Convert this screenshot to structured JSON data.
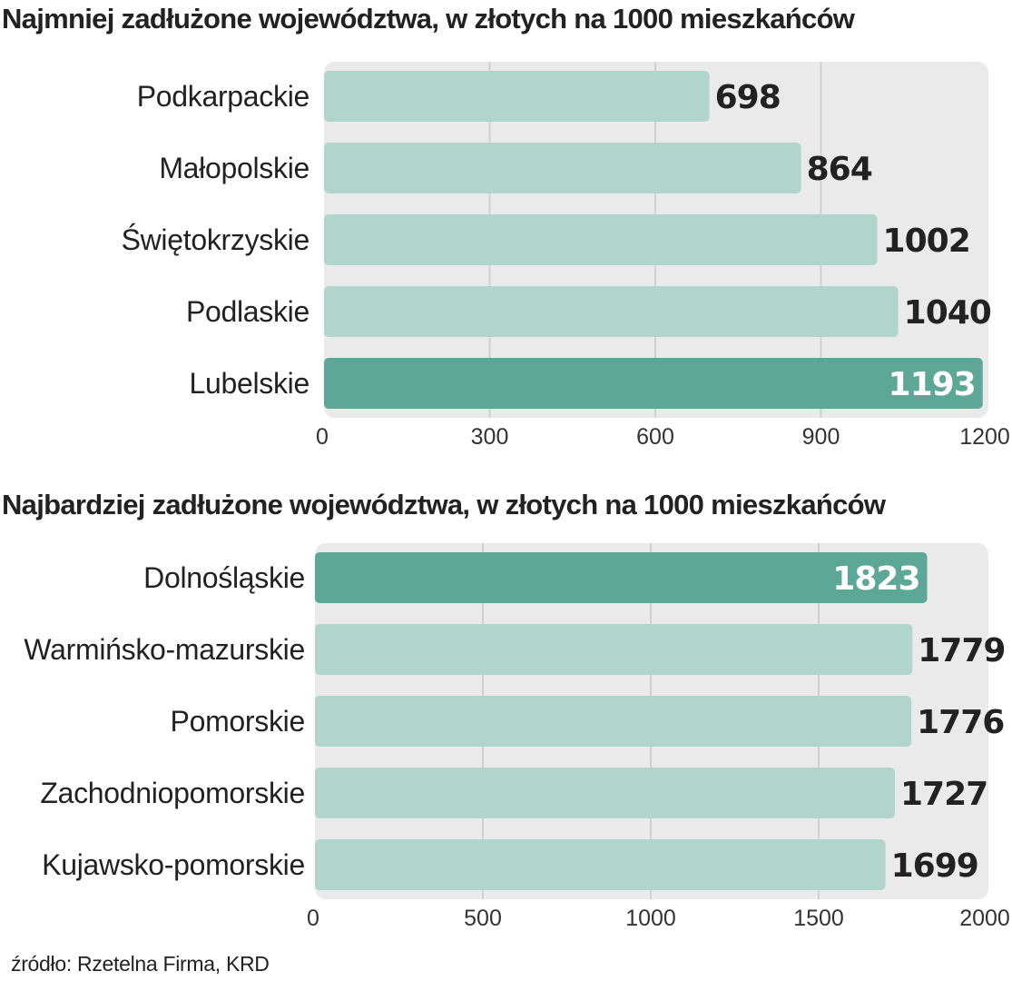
{
  "colors": {
    "bar": "#b2d5cb",
    "highlight": "#5da797",
    "panel": "#eaeaea",
    "grid": "#d0d0d0",
    "text": "#222222",
    "highlight_label": "#ffffff"
  },
  "chart_data": [
    {
      "type": "bar",
      "orientation": "horizontal",
      "title": "Najmniej zadłużone województwa, w złotych na 1000 mieszkańców",
      "categories": [
        "Podkarpackie",
        "Małopolskie",
        "Świętokrzyskie",
        "Podlaskie",
        "Lubelskie"
      ],
      "values": [
        698,
        864,
        1002,
        1040,
        1193
      ],
      "value_labels": [
        "698",
        "864",
        "1002",
        "1040",
        "1193"
      ],
      "highlight_index": 4,
      "xlim": [
        0,
        1200
      ],
      "ticks": [
        0,
        300,
        600,
        900,
        1200
      ],
      "tick_labels": [
        "0",
        "300",
        "600",
        "900",
        "1200"
      ],
      "grid": true
    },
    {
      "type": "bar",
      "orientation": "horizontal",
      "title": "Najbardziej zadłużone województwa, w złotych na 1000 mieszkańców",
      "categories": [
        "Dolnośląskie",
        "Warmińsko-mazurskie",
        "Pomorskie",
        "Zachodniopomorskie",
        "Kujawsko-pomorskie"
      ],
      "values": [
        1823,
        1779,
        1776,
        1727,
        1699
      ],
      "value_labels": [
        "1823",
        "1779",
        "1776",
        "1727",
        "1699"
      ],
      "highlight_index": 0,
      "xlim": [
        0,
        2000
      ],
      "ticks": [
        0,
        500,
        1000,
        1500,
        2000
      ],
      "tick_labels": [
        "0",
        "500",
        "1000",
        "1500",
        "2000"
      ],
      "grid": true
    }
  ],
  "source": "źródło: Rzetelna Firma, KRD"
}
